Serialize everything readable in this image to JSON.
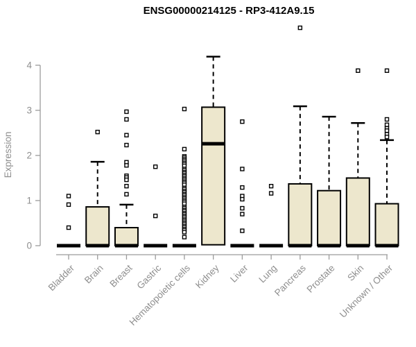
{
  "chart_data": {
    "type": "boxplot",
    "title": "ENSG00000214125 - RP3-412A9.15",
    "ylabel": "Expression",
    "ylim": [
      0,
      4
    ],
    "yticks": [
      0,
      1,
      2,
      3,
      4
    ],
    "grid": false,
    "legend": "none",
    "colors": {
      "box_fill": "#EDE7CD",
      "box_border": "#000000",
      "axis_gray": "#9b9b9b",
      "label_gray": "#8e8e8e",
      "title_color": "#000000"
    },
    "categories": [
      "Bladder",
      "Brain",
      "Breast",
      "Gastric",
      "Hematopoietic cells",
      "Kidney",
      "Liver",
      "Lung",
      "Pancreas",
      "Prostate",
      "Skin",
      "Unknown / Other"
    ],
    "boxes": [
      {
        "category": "Bladder",
        "q1": 0,
        "median": 0,
        "q3": 0,
        "whisker_high": 0,
        "outliers": [
          1.1,
          0.91,
          0.4
        ]
      },
      {
        "category": "Brain",
        "q1": 0,
        "median": 0,
        "q3": 0.86,
        "whisker_high": 1.86,
        "outliers": [
          2.52
        ]
      },
      {
        "category": "Breast",
        "q1": 0,
        "median": 0,
        "q3": 0.4,
        "whisker_high": 0.91,
        "outliers": [
          2.97,
          2.8,
          2.45,
          2.23,
          1.85,
          1.78,
          1.55,
          1.51,
          1.46,
          1.32,
          1.14
        ]
      },
      {
        "category": "Gastric",
        "q1": 0,
        "median": 0,
        "q3": 0,
        "whisker_high": 0,
        "outliers": [
          1.75,
          0.66
        ]
      },
      {
        "category": "Hematopoietic cells",
        "q1": 0,
        "median": 0,
        "q3": 0,
        "whisker_high": 0,
        "outliers": [
          3.03,
          2.14,
          1.98,
          1.95,
          1.91,
          1.88,
          1.84,
          1.81,
          1.77,
          1.7,
          1.67,
          1.63,
          1.6,
          1.56,
          1.53,
          1.49,
          1.46,
          1.42,
          1.39,
          1.35,
          1.28,
          1.25,
          1.21,
          1.18,
          1.14,
          1.11,
          1.07,
          1.04,
          1.0,
          0.97,
          0.93,
          0.86,
          0.83,
          0.79,
          0.76,
          0.72,
          0.69,
          0.65,
          0.62,
          0.58,
          0.55,
          0.51,
          0.48,
          0.44,
          0.41,
          0.37,
          0.34,
          0.3,
          0.19
        ]
      },
      {
        "category": "Kidney",
        "q1": 0.02,
        "median": 2.26,
        "q3": 3.07,
        "whisker_high": 4.19,
        "outliers": []
      },
      {
        "category": "Liver",
        "q1": 0,
        "median": 0,
        "q3": 0,
        "whisker_high": 0,
        "outliers": [
          2.75,
          1.7,
          1.29,
          1.1,
          1.03,
          0.83,
          0.7,
          0.33
        ]
      },
      {
        "category": "Lung",
        "q1": 0,
        "median": 0,
        "q3": 0,
        "whisker_high": 0,
        "outliers": [
          1.32,
          1.16
        ]
      },
      {
        "category": "Pancreas",
        "q1": 0,
        "median": 0,
        "q3": 1.37,
        "whisker_high": 3.09,
        "outliers": [
          4.83
        ]
      },
      {
        "category": "Prostate",
        "q1": 0,
        "median": 0,
        "q3": 1.22,
        "whisker_high": 2.86,
        "outliers": []
      },
      {
        "category": "Skin",
        "q1": 0,
        "median": 0,
        "q3": 1.5,
        "whisker_high": 2.72,
        "outliers": [
          3.88
        ]
      },
      {
        "category": "Unknown / Other",
        "q1": 0,
        "median": 0,
        "q3": 0.93,
        "whisker_high": 2.34,
        "outliers": [
          3.88,
          2.8,
          2.68,
          2.6,
          2.55,
          2.47,
          2.41
        ]
      }
    ]
  }
}
